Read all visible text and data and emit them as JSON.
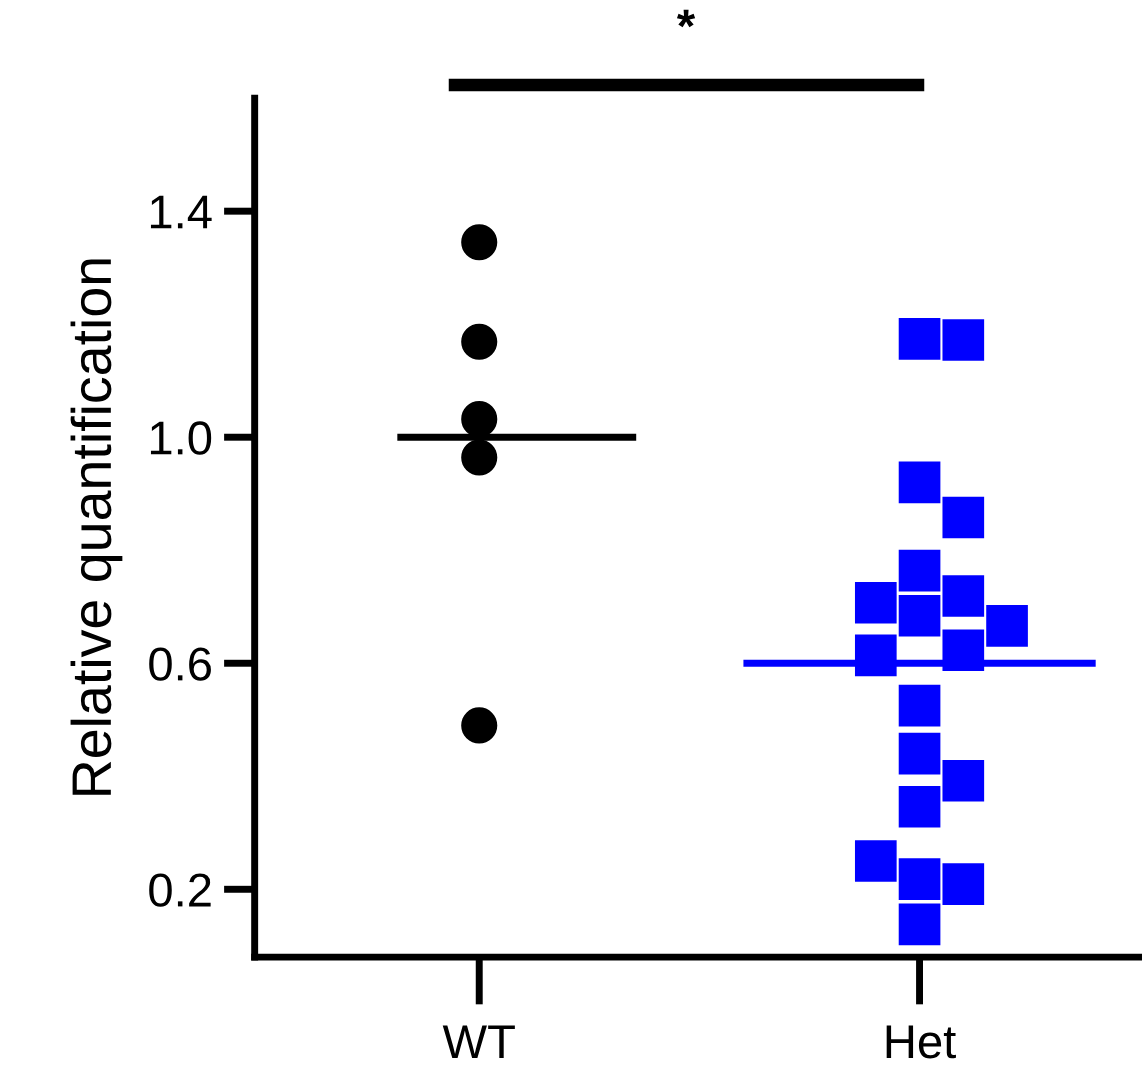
{
  "chart_data": {
    "type": "scatter",
    "ylabel": "Relative quantification",
    "annotations": [
      "*"
    ],
    "categories": [
      "WT",
      "Het"
    ],
    "ylim": [
      0.08,
      1.6
    ],
    "yticks": [
      {
        "value": 0.2,
        "label": "0.2"
      },
      {
        "value": 0.6,
        "label": "0.6"
      },
      {
        "value": 1.0,
        "label": "1.0"
      },
      {
        "value": 1.4,
        "label": "1.4"
      }
    ],
    "ref_lines": [
      {
        "axis": "y",
        "value": 1.0,
        "color": "#000000"
      },
      {
        "axis": "y",
        "value": 0.6,
        "color": "#0000ff"
      }
    ],
    "grid": false,
    "legend": false,
    "series": [
      {
        "marker": "circle",
        "color": "#000000",
        "x": [
          "WT",
          "WT",
          "WT",
          "WT",
          "WT"
        ],
        "values": [
          1.345,
          1.169,
          1.032,
          0.964,
          0.49
        ]
      },
      {
        "marker": "square",
        "color": "#0000ff",
        "x": [
          "Het",
          "Het",
          "Het",
          "Het",
          "Het",
          "Het",
          "Het",
          "Het",
          "Het",
          "Het",
          "Het",
          "Het",
          "Het",
          "Het",
          "Het",
          "Het",
          "Het",
          "Het",
          "Het"
        ],
        "values": [
          1.174,
          1.172,
          0.92,
          0.858,
          0.764,
          0.719,
          0.684,
          0.707,
          0.666,
          0.623,
          0.614,
          0.525,
          0.44,
          0.392,
          0.346,
          0.218,
          0.209,
          0.25,
          0.138
        ]
      }
    ]
  }
}
